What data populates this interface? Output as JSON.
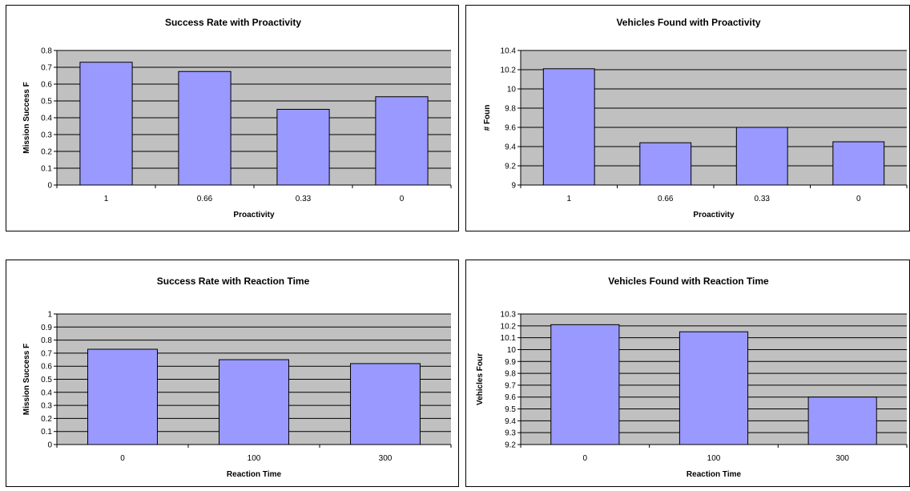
{
  "chart_data": [
    {
      "type": "bar",
      "title": "Success Rate with Proactivity",
      "xlabel": "Proactivity",
      "ylabel": "Mission Success F",
      "categories": [
        "1",
        "0.66",
        "0.33",
        "0"
      ],
      "values": [
        0.73,
        0.675,
        0.45,
        0.525
      ],
      "yticks": [
        "0",
        "0.1",
        "0.2",
        "0.3",
        "0.4",
        "0.5",
        "0.6",
        "0.7",
        "0.8"
      ],
      "ylim": [
        0,
        0.8
      ],
      "grid": true,
      "legend": "none",
      "colors": {
        "bar": "#9999ff",
        "plot_bg": "#c0c0c0"
      }
    },
    {
      "type": "bar",
      "title": "Vehicles Found with Proactivity",
      "xlabel": "Proactivity",
      "ylabel": "# Foun",
      "categories": [
        "1",
        "0.66",
        "0.33",
        "0"
      ],
      "values": [
        10.21,
        9.44,
        9.6,
        9.45
      ],
      "yticks": [
        "9",
        "9.2",
        "9.4",
        "9.6",
        "9.8",
        "10",
        "10.2",
        "10.4"
      ],
      "ylim": [
        9,
        10.4
      ],
      "grid": true,
      "legend": "none",
      "colors": {
        "bar": "#9999ff",
        "plot_bg": "#c0c0c0"
      }
    },
    {
      "type": "bar",
      "title": "Success Rate with Reaction Time",
      "xlabel": "Reaction Time",
      "ylabel": "Mission Success F",
      "categories": [
        "0",
        "100",
        "300"
      ],
      "values": [
        0.73,
        0.65,
        0.62
      ],
      "yticks": [
        "0",
        "0.1",
        "0.2",
        "0.3",
        "0.4",
        "0.5",
        "0.6",
        "0.7",
        "0.8",
        "0.9",
        "1"
      ],
      "ylim": [
        0,
        1
      ],
      "grid": true,
      "legend": "none",
      "colors": {
        "bar": "#9999ff",
        "plot_bg": "#c0c0c0"
      }
    },
    {
      "type": "bar",
      "title": "Vehicles Found with Reaction Time",
      "xlabel": "Reaction Time",
      "ylabel": "Vehicles Four",
      "categories": [
        "0",
        "100",
        "300"
      ],
      "values": [
        10.21,
        10.15,
        9.6
      ],
      "yticks": [
        "9.2",
        "9.3",
        "9.4",
        "9.5",
        "9.6",
        "9.7",
        "9.8",
        "9.9",
        "10",
        "10.1",
        "10.2",
        "10.3"
      ],
      "ylim": [
        9.2,
        10.3
      ],
      "grid": true,
      "legend": "none",
      "colors": {
        "bar": "#9999ff",
        "plot_bg": "#c0c0c0"
      }
    }
  ]
}
